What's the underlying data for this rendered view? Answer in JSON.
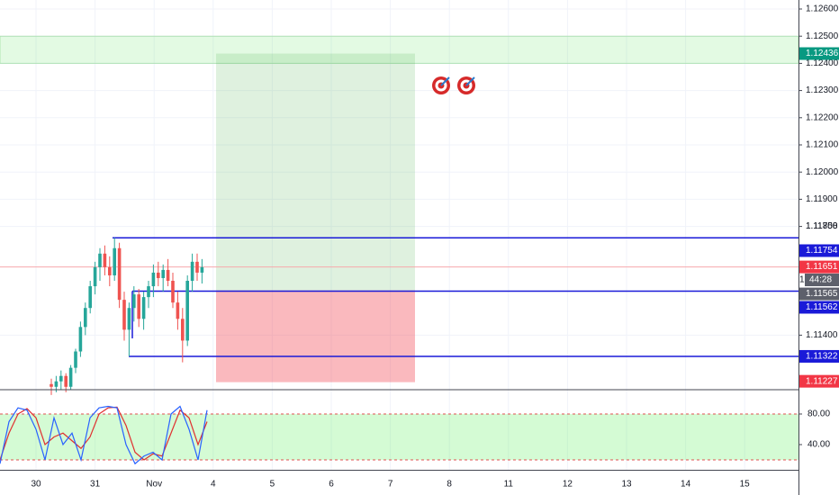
{
  "price_axis": {
    "ticks": [
      {
        "value": 1.126,
        "label": "1.12600"
      },
      {
        "value": 1.125,
        "label": "1.12500"
      },
      {
        "value": 1.124,
        "label": "1.12400"
      },
      {
        "value": 1.123,
        "label": "1.12300"
      },
      {
        "value": 1.122,
        "label": "1.12200"
      },
      {
        "value": 1.121,
        "label": "1.12100"
      },
      {
        "value": 1.12,
        "label": "1.12000"
      },
      {
        "value": 1.119,
        "label": "1.11900"
      },
      {
        "value": 1.118,
        "label": "1.11800"
      },
      {
        "value": 1.114,
        "label": "1.11400"
      }
    ],
    "level_label": {
      "value": 1.11758,
      "label": "1.11758"
    }
  },
  "badges": [
    {
      "value": 1.12436,
      "label": "1.12436",
      "color": "#089981"
    },
    {
      "value": 1.11754,
      "label": "1.11754",
      "color": "#1a1ad8"
    },
    {
      "value": 1.11651,
      "label": "1.11651",
      "color": "#f23645"
    },
    {
      "value": 1.11565,
      "label": "1.11565",
      "color": "#5d606b"
    },
    {
      "value": 1.11562,
      "label": "1.11562",
      "color": "#1a1ad8"
    },
    {
      "value": 1.11322,
      "label": "1.11322",
      "color": "#1a1ad8"
    },
    {
      "value": 1.11227,
      "label": "1.11227",
      "color": "#f23645"
    }
  ],
  "countdown": {
    "prefix": "1",
    "time": "44:28"
  },
  "zone": [
    1.124,
    1.125
  ],
  "time_axis": {
    "labels": [
      "30",
      "31",
      "Nov",
      "4",
      "5",
      "6",
      "7",
      "8",
      "11",
      "12",
      "13",
      "14",
      "15"
    ]
  },
  "candles": [
    [
      1.1122,
      1.1124,
      1.1118,
      1.1121
    ],
    [
      1.1121,
      1.1125,
      1.1119,
      1.1123
    ],
    [
      1.1123,
      1.1127,
      1.112,
      1.1125
    ],
    [
      1.1125,
      1.1126,
      1.1119,
      1.1121
    ],
    [
      1.1121,
      1.1129,
      1.112,
      1.1128
    ],
    [
      1.1128,
      1.1135,
      1.1126,
      1.1134
    ],
    [
      1.1134,
      1.1145,
      1.1132,
      1.1143
    ],
    [
      1.1143,
      1.1152,
      1.114,
      1.115
    ],
    [
      1.115,
      1.116,
      1.1148,
      1.1158
    ],
    [
      1.1158,
      1.1167,
      1.1155,
      1.1165
    ],
    [
      1.1165,
      1.1172,
      1.116,
      1.117
    ],
    [
      1.117,
      1.1173,
      1.1162,
      1.1165
    ],
    [
      1.1165,
      1.1169,
      1.1158,
      1.1162
    ],
    [
      1.1162,
      1.11758,
      1.116,
      1.1172
    ],
    [
      1.1172,
      1.1174,
      1.115,
      1.1153
    ],
    [
      1.1153,
      1.1156,
      1.1138,
      1.1142
    ],
    [
      1.1142,
      1.1152,
      1.11322,
      1.115
    ],
    [
      1.115,
      1.1158,
      1.1145,
      1.1155
    ],
    [
      1.1155,
      1.1157,
      1.1143,
      1.1146
    ],
    [
      1.1146,
      1.1156,
      1.1142,
      1.1154
    ],
    [
      1.1154,
      1.116,
      1.115,
      1.1158
    ],
    [
      1.1158,
      1.1166,
      1.1154,
      1.1163
    ],
    [
      1.1163,
      1.1167,
      1.1158,
      1.1161
    ],
    [
      1.1161,
      1.1166,
      1.1156,
      1.1164
    ],
    [
      1.1164,
      1.1168,
      1.1158,
      1.116
    ],
    [
      1.116,
      1.1163,
      1.115,
      1.1152
    ],
    [
      1.1152,
      1.1156,
      1.1142,
      1.1146
    ],
    [
      1.1146,
      1.115,
      1.113,
      1.1138
    ],
    [
      1.1138,
      1.1162,
      1.1136,
      1.116
    ],
    [
      1.116,
      1.117,
      1.1156,
      1.1167
    ],
    [
      1.1167,
      1.117,
      1.116,
      1.1163
    ],
    [
      1.1163,
      1.1168,
      1.1159,
      1.1165
    ]
  ],
  "oscillator": {
    "ticks": [
      {
        "value": 80,
        "label": "80.00"
      },
      {
        "value": 40,
        "label": "40.00"
      }
    ],
    "band": [
      20,
      80
    ],
    "k": [
      15,
      70,
      88,
      85,
      60,
      20,
      75,
      40,
      55,
      20,
      75,
      88,
      90,
      88,
      40,
      15,
      25,
      30,
      20,
      80,
      90,
      60,
      20,
      85
    ],
    "d": [
      20,
      55,
      80,
      87,
      75,
      40,
      50,
      55,
      45,
      35,
      50,
      80,
      88,
      89,
      65,
      30,
      20,
      28,
      25,
      55,
      85,
      75,
      40,
      70
    ]
  }
}
